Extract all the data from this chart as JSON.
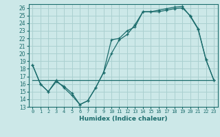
{
  "xlabel": "Humidex (Indice chaleur)",
  "bg_color": "#cce8e8",
  "grid_color": "#aad0d0",
  "line_color": "#1a6b6b",
  "xlim": [
    -0.5,
    23.5
  ],
  "ylim": [
    13,
    26.5
  ],
  "xticks": [
    0,
    1,
    2,
    3,
    4,
    5,
    6,
    7,
    8,
    9,
    10,
    11,
    12,
    13,
    14,
    15,
    16,
    17,
    18,
    19,
    20,
    21,
    22,
    23
  ],
  "yticks": [
    13,
    14,
    15,
    16,
    17,
    18,
    19,
    20,
    21,
    22,
    23,
    24,
    25,
    26
  ],
  "line1_x": [
    0,
    1,
    2,
    3,
    4,
    5,
    6,
    7,
    8,
    9,
    10,
    11,
    12,
    13,
    14,
    15,
    16,
    17,
    18,
    19,
    20,
    21,
    22,
    23
  ],
  "line1_y": [
    18.5,
    16.0,
    15.0,
    16.5,
    15.5,
    14.5,
    13.3,
    13.8,
    15.5,
    17.5,
    21.8,
    22.0,
    23.0,
    23.5,
    25.5,
    25.5,
    25.5,
    25.7,
    25.9,
    26.0,
    25.0,
    23.3,
    19.2,
    16.5
  ],
  "line2_x": [
    0,
    1,
    2,
    3,
    4,
    5,
    6,
    7,
    8,
    9,
    10,
    11,
    12,
    13,
    14,
    15,
    16,
    17,
    18,
    19,
    20,
    21,
    22,
    23
  ],
  "line2_y": [
    18.5,
    16.0,
    15.0,
    16.3,
    15.7,
    14.8,
    13.3,
    13.8,
    15.5,
    17.5,
    20.0,
    21.8,
    22.5,
    23.8,
    25.5,
    25.5,
    25.7,
    25.9,
    26.1,
    26.2,
    24.9,
    23.2,
    19.2,
    16.5
  ],
  "line3_x": [
    0,
    23
  ],
  "line3_y": [
    16.5,
    16.5
  ]
}
